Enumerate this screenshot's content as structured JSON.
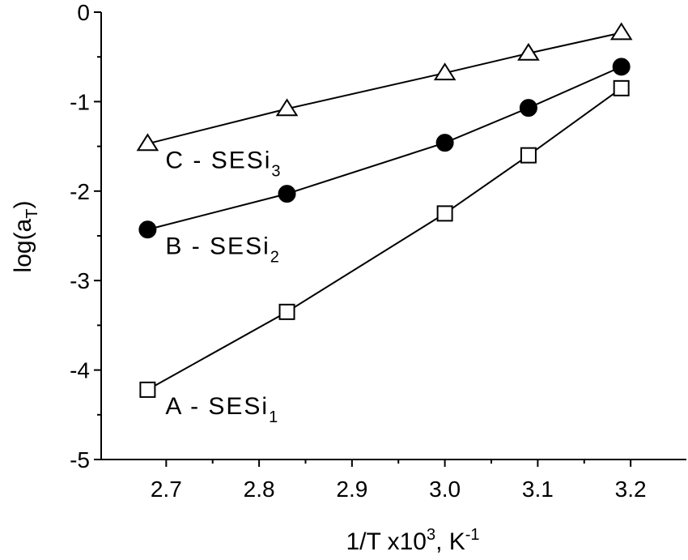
{
  "chart_data": {
    "type": "scatter",
    "xlabel": {
      "main": "1/T  x10",
      "sup": "3",
      "sep": ", K",
      "sup2": "-1"
    },
    "ylabel": {
      "main": "log(a",
      "sub": "T",
      "end": ")"
    },
    "xlim": [
      2.63,
      3.26
    ],
    "ylim": [
      -5,
      0
    ],
    "xticks": [
      2.7,
      2.8,
      2.9,
      3.0,
      3.1,
      3.2
    ],
    "xtick_labels": [
      "2.7",
      "2.8",
      "2.9",
      "3.0",
      "3.1",
      "3.2"
    ],
    "yticks": [
      0,
      -1,
      -2,
      -3,
      -4,
      -5
    ],
    "ytick_labels": [
      "0",
      "-1",
      "-2",
      "-3",
      "-4",
      "-5"
    ],
    "grid": false,
    "series": [
      {
        "label_main": "A - SESi",
        "label_sub": "1",
        "marker": "open-square",
        "x": [
          2.68,
          2.83,
          3.0,
          3.09,
          3.19
        ],
        "y": [
          -4.22,
          -3.35,
          -2.25,
          -1.6,
          -0.85
        ]
      },
      {
        "label_main": "B - SESi",
        "label_sub": "2",
        "marker": "filled-circle",
        "x": [
          2.68,
          2.83,
          3.0,
          3.09,
          3.19
        ],
        "y": [
          -2.43,
          -2.03,
          -1.46,
          -1.07,
          -0.61
        ]
      },
      {
        "label_main": "C - SESi",
        "label_sub": "3",
        "marker": "open-triangle",
        "x": [
          2.68,
          2.83,
          3.0,
          3.09,
          3.19
        ],
        "y": [
          -1.47,
          -1.08,
          -0.68,
          -0.46,
          -0.23
        ]
      }
    ]
  }
}
